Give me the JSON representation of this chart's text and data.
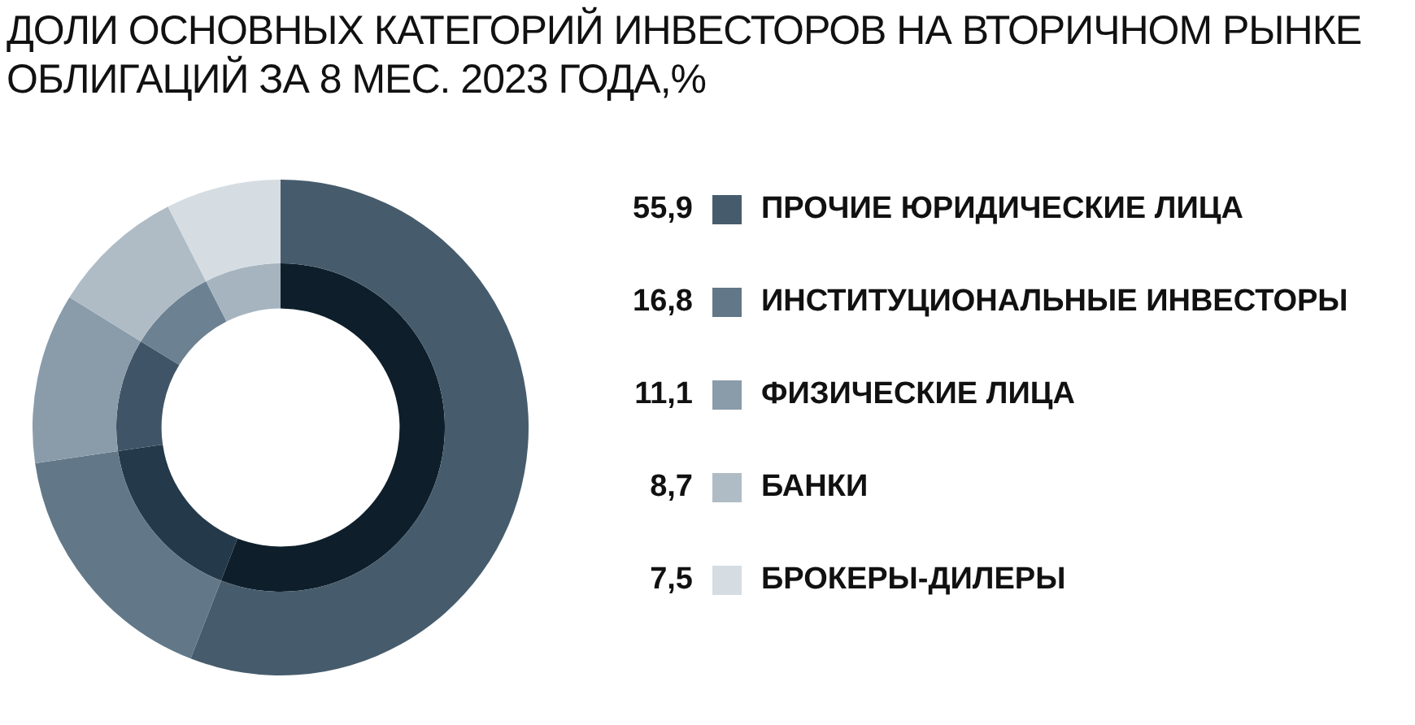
{
  "chart_data": {
    "type": "donut",
    "title": "ДОЛИ ОСНОВНЫХ КАТЕГОРИЙ ИНВЕСТОРОВ НА ВТОРИЧНОМ РЫНКЕ ОБЛИГАЦИЙ ЗА 8 МЕС. 2023 ГОДА,%",
    "categories": [
      "ПРОЧИЕ ЮРИДИЧЕСКИЕ ЛИЦА",
      "ИНСТИТУЦИОНАЛЬНЫЕ ИНВЕСТОРЫ",
      "ФИЗИЧЕСКИЕ ЛИЦА",
      "БАНКИ",
      "БРОКЕРЫ-ДИЛЕРЫ"
    ],
    "series": [
      {
        "values": [
          55.9,
          16.8,
          11.1,
          8.7,
          7.5
        ],
        "colors": [
          "#465c6c",
          "#627888",
          "#8a9caa",
          "#afbcc6",
          "#d5dde3"
        ],
        "value_labels": [
          "55,9",
          "16,8",
          "11,1",
          "8,7",
          "7,5"
        ]
      },
      {
        "values": [
          55.9,
          16.8,
          11.1,
          8.7,
          7.5
        ],
        "colors": [
          "#0e1f2b",
          "#243949",
          "#3f5567",
          "#6c8192",
          "#a6b4bf"
        ]
      }
    ],
    "legend": "right"
  }
}
